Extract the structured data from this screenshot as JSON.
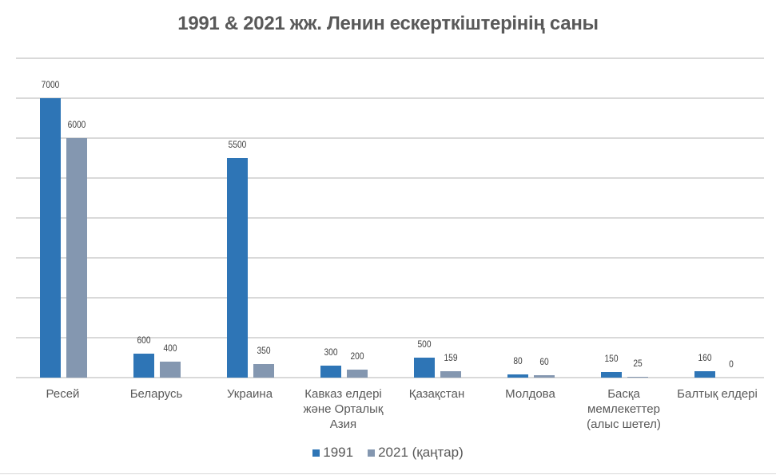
{
  "chart_data": {
    "type": "bar",
    "title": "1991 & 2021 жж. Ленин ескерткіштерінің саны",
    "xlabel": "",
    "ylabel": "",
    "ylim": [
      0,
      8000
    ],
    "grid": true,
    "y_tick_step": 1000,
    "y_axis_labels_visible": false,
    "legend_position": "bottom",
    "categories": [
      "Ресей",
      "Беларусь",
      "Украина",
      "Кавказ елдері және Орталық Азия",
      "Қазақстан",
      "Молдова",
      "Басқа мемлекеттер (алыс шетел)",
      "Балтық елдері"
    ],
    "series": [
      {
        "name": "1991",
        "color": "#2E75B6",
        "values": [
          7000,
          600,
          5500,
          300,
          500,
          80,
          150,
          160
        ]
      },
      {
        "name": "2021 (қаңтар)",
        "color": "#8497B0",
        "values": [
          6000,
          400,
          350,
          200,
          159,
          60,
          25,
          0
        ]
      }
    ]
  },
  "labels": {
    "categories_display": [
      [
        "Ресей"
      ],
      [
        "Беларусь"
      ],
      [
        "Украина"
      ],
      [
        "Кавказ елдері",
        "және Орталық",
        "Азия"
      ],
      [
        "Қазақстан"
      ],
      [
        "Молдова"
      ],
      [
        "Басқа",
        "мемлекеттер",
        "(алыс шетел)"
      ],
      [
        "Балтық елдері"
      ]
    ]
  }
}
